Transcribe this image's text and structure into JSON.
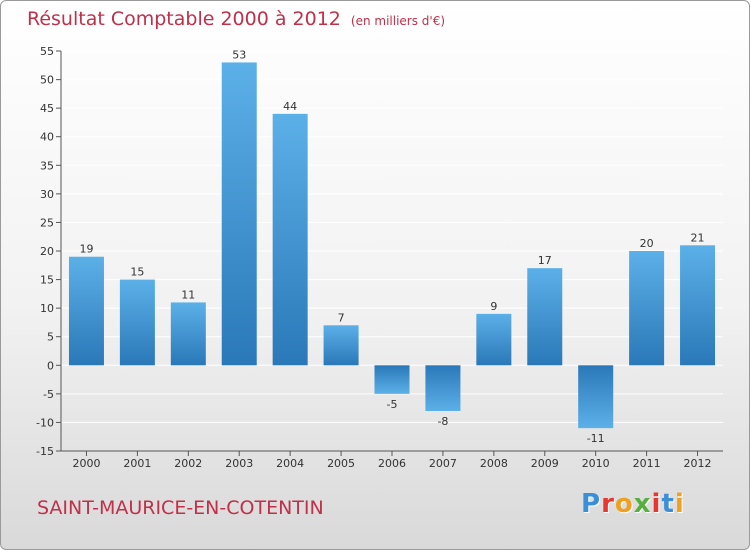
{
  "header": {
    "title": "Résultat Comptable 2000 à 2012",
    "subtitle": "(en milliers d'€)"
  },
  "footer": {
    "commune": "SAINT-MAURICE-EN-COTENTIN",
    "brand": "Proxiti"
  },
  "colors": {
    "bar_top": "#5cb0e8",
    "bar_bottom": "#2a78b8",
    "title": "#c0304a",
    "grid": "#ffffff"
  },
  "chart_data": {
    "type": "bar",
    "title": "Résultat Comptable 2000 à 2012",
    "subtitle": "(en milliers d'€)",
    "xlabel": "",
    "ylabel": "",
    "categories": [
      "2000",
      "2001",
      "2002",
      "2003",
      "2004",
      "2005",
      "2006",
      "2007",
      "2008",
      "2009",
      "2010",
      "2011",
      "2012"
    ],
    "values": [
      19,
      15,
      11,
      53,
      44,
      7,
      -5,
      -8,
      9,
      17,
      -11,
      20,
      21
    ],
    "ylim": [
      -15,
      55
    ],
    "yticks": [
      -15,
      -10,
      -5,
      0,
      5,
      10,
      15,
      20,
      25,
      30,
      35,
      40,
      45,
      50,
      55
    ],
    "grid": true,
    "legend": "none"
  }
}
